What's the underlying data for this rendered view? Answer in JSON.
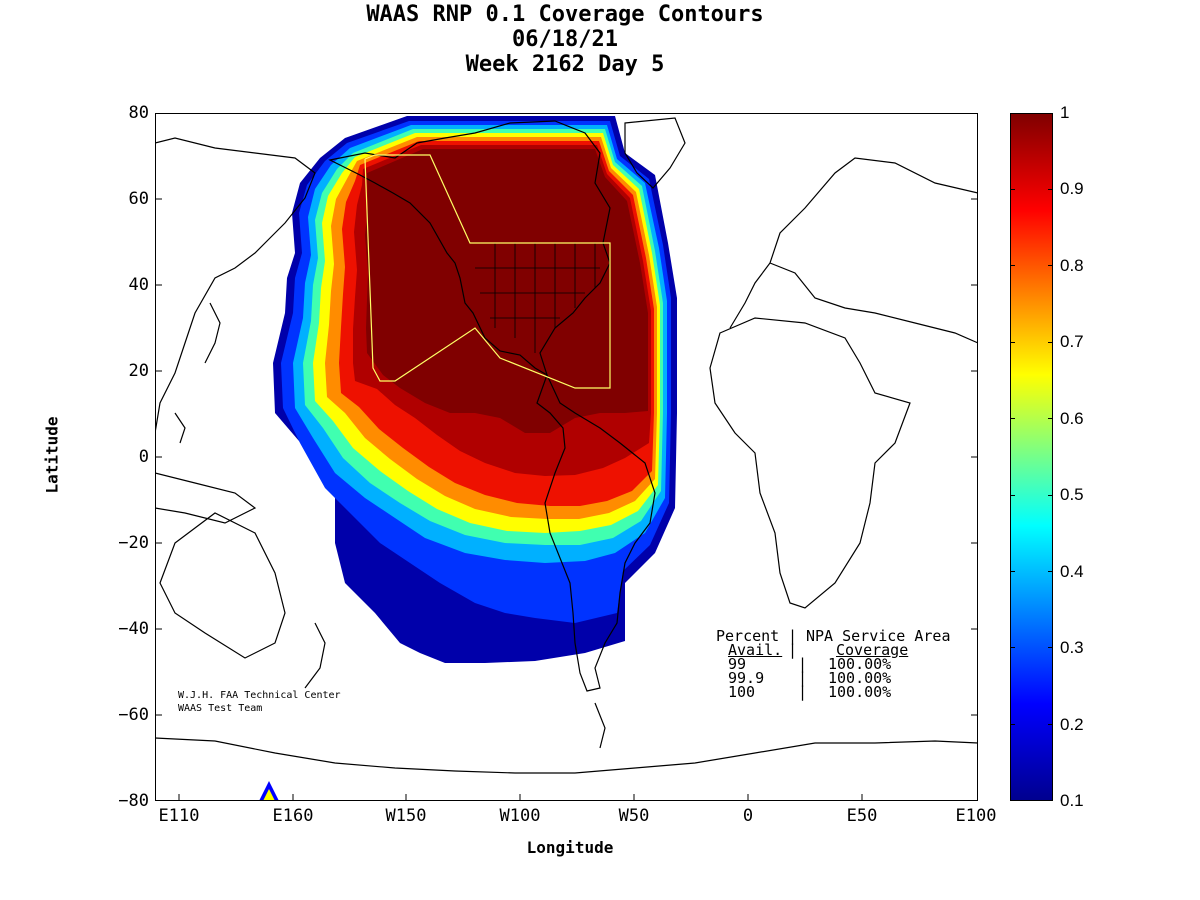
{
  "title": {
    "line1": "WAAS RNP 0.1 Coverage Contours",
    "line2": "06/18/21",
    "line3": "Week 2162 Day 5"
  },
  "axes": {
    "xlabel": "Longitude",
    "ylabel": "Latitude",
    "yticks": [
      "80",
      "60",
      "40",
      "20",
      "0",
      "−20",
      "−40",
      "−60",
      "−80"
    ],
    "xticks": [
      "E110",
      "E160",
      "W150",
      "W100",
      "W50",
      "0",
      "E50",
      "E100"
    ]
  },
  "colorbar": {
    "ticks": [
      "1",
      "0.9",
      "0.8",
      "0.7",
      "0.6",
      "0.5",
      "0.4",
      "0.3",
      "0.2",
      "0.1"
    ],
    "range": [
      0.1,
      1
    ],
    "colormap": [
      "#00008f",
      "#0000ff",
      "#00ffff",
      "#ffff00",
      "#ff0000",
      "#800000"
    ]
  },
  "credits": {
    "line1": "W.J.H. FAA Technical Center",
    "line2": "WAAS Test Team"
  },
  "legend": {
    "header1_left": "Percent",
    "header1_right": "NPA Service Area",
    "header2_left": "Avail.",
    "header2_right": "Coverage",
    "rows": [
      {
        "avail": "99",
        "coverage": "100.00%"
      },
      {
        "avail": "99.9",
        "coverage": "100.00%"
      },
      {
        "avail": "100",
        "coverage": "100.00%"
      }
    ]
  },
  "map": {
    "background": "#ffffff",
    "coastline_color": "#000000",
    "service_area_color": "#ffff66",
    "coverage_level_colors": {
      "full": "#800000",
      "high": "#b30000",
      "mid": "#ff6600",
      "low": "#00ccff",
      "lowest": "#0000cc"
    }
  }
}
